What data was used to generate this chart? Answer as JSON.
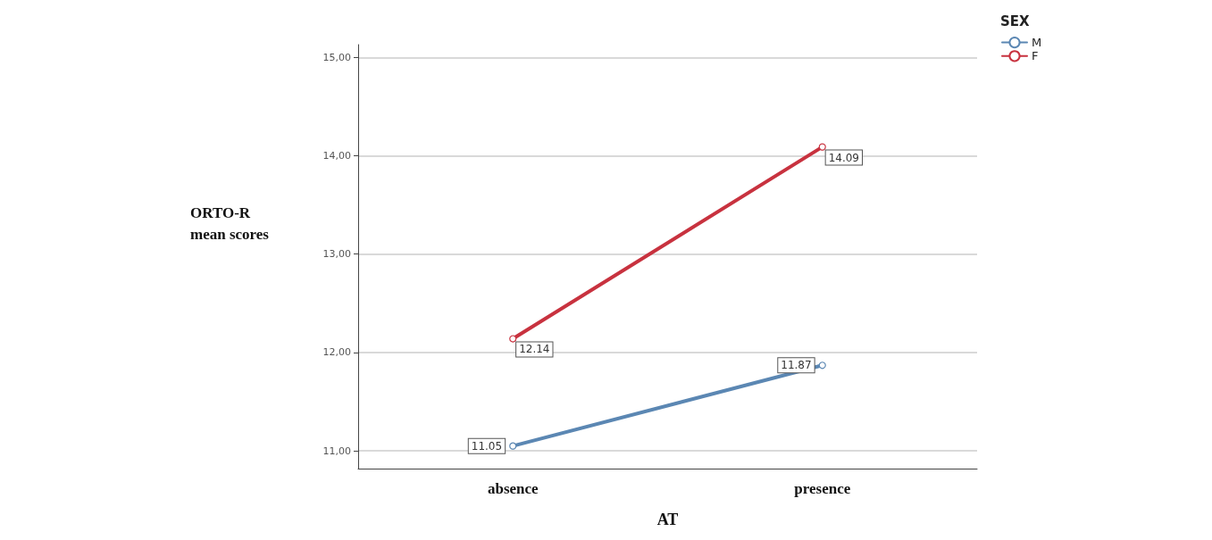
{
  "chart_data": {
    "type": "line",
    "xlabel": "AT",
    "ylabel": "ORTO-R\nmean scores",
    "legend_title": "SEX",
    "categories": [
      "absence",
      "presence"
    ],
    "series": [
      {
        "name": "M",
        "color": "#5b87b3",
        "values": [
          11.05,
          11.87
        ]
      },
      {
        "name": "F",
        "color": "#c8323f",
        "values": [
          12.14,
          14.09
        ]
      }
    ],
    "ylim": [
      10.82,
      15.13
    ],
    "yticks": [
      {
        "value": 11,
        "label": "11,00"
      },
      {
        "value": 12,
        "label": "12,00"
      },
      {
        "value": 13,
        "label": "13,00"
      },
      {
        "value": 14,
        "label": "14,00"
      },
      {
        "value": 15,
        "label": "15,00"
      }
    ],
    "grid": "y",
    "legend": "top right",
    "marker": "circle",
    "line_style": "solid",
    "data_labels": true
  }
}
